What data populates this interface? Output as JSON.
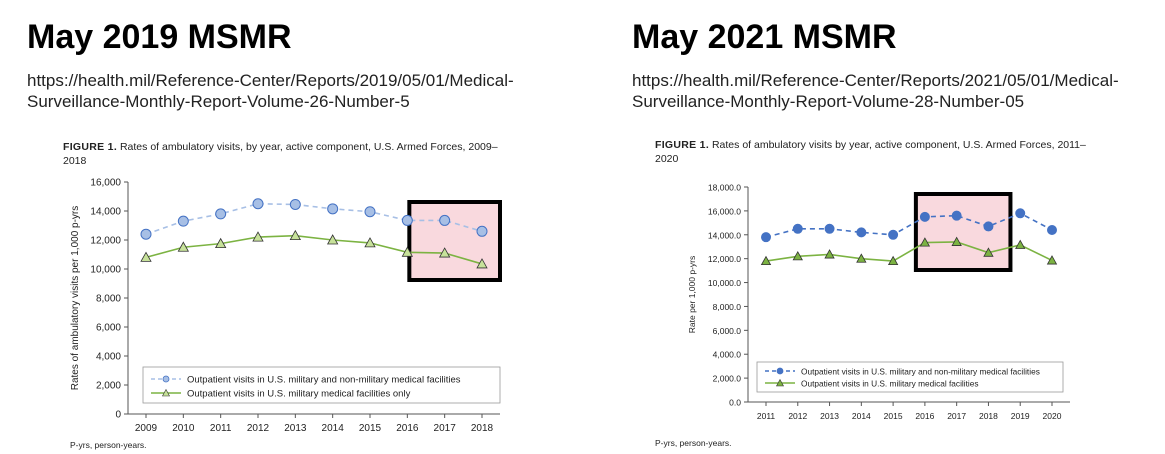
{
  "left": {
    "heading": "May 2019 MSMR",
    "url_line1": "https://health.mil/Reference-Center/Reports/2019/05/01/Medical-",
    "url_line2": "Surveillance-Monthly-Report-Volume-26-Number-5",
    "figure_label": "FIGURE 1.",
    "figure_title_line1": "Rates of ambulatory visits, by year, active component, U.S. Armed Forces, 2009–",
    "figure_title_line2": "2018",
    "footnote": "P-yrs, person-years."
  },
  "right": {
    "heading": "May 2021 MSMR",
    "url_line1": "https://health.mil/Reference-Center/Reports/2021/05/01/Medical-",
    "url_line2": "Surveillance-Monthly-Report-Volume-28-Number-05",
    "figure_label": "FIGURE 1.",
    "figure_title_line1": "Rates of ambulatory visits by year, active component, U.S. Armed Forces, 2011–",
    "figure_title_line2": "2020",
    "footnote": "P-yrs, person-years."
  },
  "colors": {
    "series1": "#4472c4",
    "series1_fill": "#a7bfe5",
    "series2": "#7cb342",
    "series2_fill": "#c7e29a",
    "highlight_fill": "#f9d9de",
    "highlight_border": "#000000"
  },
  "chart_data": [
    {
      "type": "line",
      "title": "Rates of ambulatory visits, by year, active component, U.S. Armed Forces, 2009–2018",
      "xlabel": "",
      "ylabel": "Rates of ambulatory visits per 1,000 p-yrs",
      "categories": [
        "2009",
        "2010",
        "2011",
        "2012",
        "2013",
        "2014",
        "2015",
        "2016",
        "2017",
        "2018"
      ],
      "ylim": [
        0,
        16000
      ],
      "yticks": [
        0,
        2000,
        4000,
        6000,
        8000,
        10000,
        12000,
        14000,
        16000
      ],
      "ytick_labels": [
        "0",
        "2,000",
        "4,000",
        "6,000",
        "8,000",
        "10,000",
        "12,000",
        "14,000",
        "16,000"
      ],
      "series": [
        {
          "name": "Outpatient visits in U.S. military and non-military medical facilities",
          "marker": "circle",
          "dash": true,
          "values": [
            12400,
            13300,
            13800,
            14500,
            14450,
            14150,
            13950,
            13350,
            13350,
            12600
          ]
        },
        {
          "name": "Outpatient visits in U.S. military medical facilities only",
          "marker": "triangle",
          "dash": false,
          "values": [
            10800,
            11500,
            11750,
            12200,
            12300,
            12000,
            11800,
            11150,
            11100,
            10350
          ]
        }
      ],
      "highlight": {
        "from": "2016",
        "to": "2018"
      },
      "legend": "bottom-left"
    },
    {
      "type": "line",
      "title": "Rates of ambulatory visits by year, active component, U.S. Armed Forces, 2011–2020",
      "xlabel": "",
      "ylabel": "Rate per 1,000 p-yrs",
      "categories": [
        "2011",
        "2012",
        "2013",
        "2014",
        "2015",
        "2016",
        "2017",
        "2018",
        "2019",
        "2020"
      ],
      "ylim": [
        0,
        18000
      ],
      "yticks": [
        0,
        2000,
        4000,
        6000,
        8000,
        10000,
        12000,
        14000,
        16000,
        18000
      ],
      "ytick_labels": [
        "0.0",
        "2,000.0",
        "4,000.0",
        "6,000.0",
        "8,000.0",
        "10,000.0",
        "12,000.0",
        "14,000.0",
        "16,000.0",
        "18,000.0"
      ],
      "series": [
        {
          "name": "Outpatient visits in U.S. military and non-military medical facilities",
          "marker": "circle",
          "dash": true,
          "values": [
            13800,
            14500,
            14500,
            14200,
            14000,
            15500,
            15600,
            14700,
            15800,
            14400
          ]
        },
        {
          "name": "Outpatient visits in U.S. military medical facilities",
          "marker": "triangle",
          "dash": false,
          "values": [
            11800,
            12200,
            12350,
            12000,
            11800,
            13350,
            13400,
            12500,
            13150,
            11850
          ]
        }
      ],
      "highlight": {
        "from": "2016",
        "to": "2018"
      },
      "legend": "bottom-left"
    }
  ]
}
